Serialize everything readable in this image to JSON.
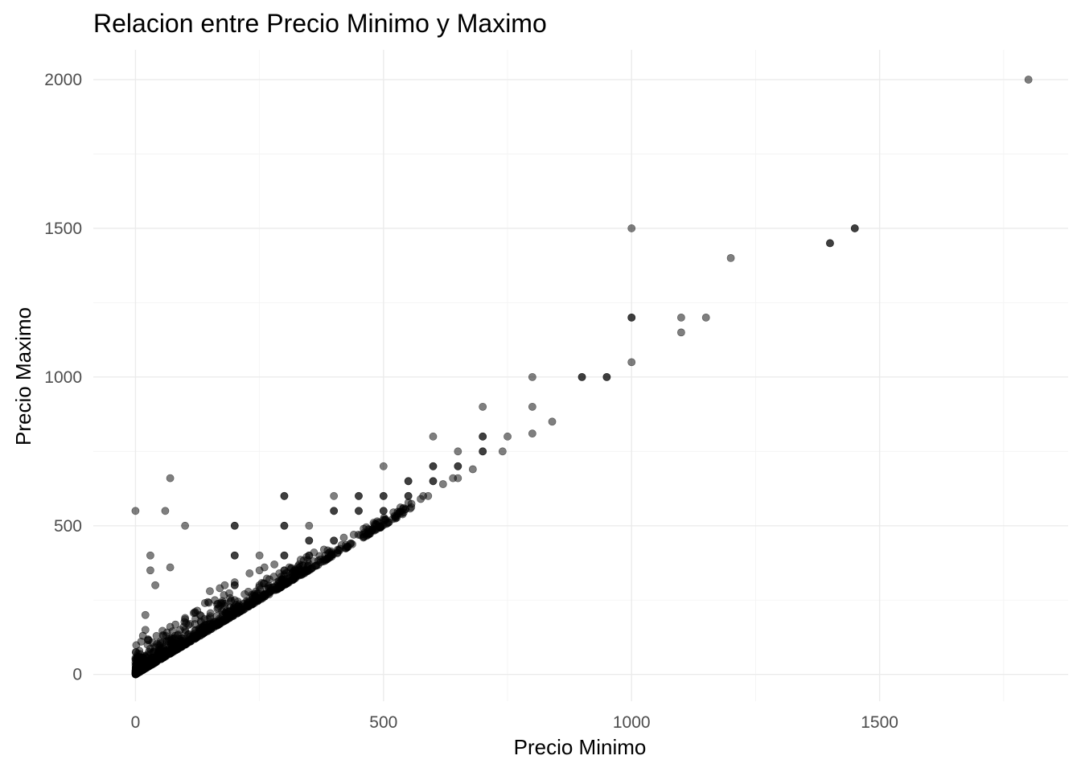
{
  "chart_data": {
    "type": "scatter",
    "title": "Relacion entre Precio Minimo y Maximo",
    "xlabel": "Precio Minimo",
    "ylabel": "Precio Maximo",
    "xlim": [
      -85,
      1880
    ],
    "ylim": [
      -90,
      2100
    ],
    "x_ticks": [
      0,
      500,
      1000,
      1500
    ],
    "y_ticks": [
      0,
      500,
      1000,
      1500,
      2000
    ],
    "x_tick_labels": [
      "0",
      "500",
      "1000",
      "1500"
    ],
    "y_tick_labels": [
      "0",
      "500",
      "1000",
      "1500",
      "2000"
    ],
    "grid": true,
    "point_color": "#000000",
    "point_opacity": 0.5,
    "points": [
      [
        1800,
        2000
      ],
      [
        1000,
        1500
      ],
      [
        1450,
        1500
      ],
      [
        1450,
        1500
      ],
      [
        1400,
        1450
      ],
      [
        1400,
        1450
      ],
      [
        1200,
        1400
      ],
      [
        1000,
        1200
      ],
      [
        1000,
        1200
      ],
      [
        1100,
        1200
      ],
      [
        1150,
        1200
      ],
      [
        1100,
        1150
      ],
      [
        1000,
        1050
      ],
      [
        800,
        1000
      ],
      [
        900,
        1000
      ],
      [
        900,
        1000
      ],
      [
        950,
        1000
      ],
      [
        950,
        1000
      ],
      [
        700,
        900
      ],
      [
        800,
        900
      ],
      [
        840,
        850
      ],
      [
        800,
        810
      ],
      [
        600,
        800
      ],
      [
        700,
        800
      ],
      [
        700,
        800
      ],
      [
        750,
        800
      ],
      [
        650,
        750
      ],
      [
        700,
        750
      ],
      [
        700,
        750
      ],
      [
        740,
        750
      ],
      [
        500,
        700
      ],
      [
        600,
        700
      ],
      [
        600,
        700
      ],
      [
        650,
        700
      ],
      [
        650,
        700
      ],
      [
        680,
        690
      ],
      [
        640,
        660
      ],
      [
        650,
        660
      ],
      [
        600,
        650
      ],
      [
        600,
        650
      ],
      [
        620,
        640
      ],
      [
        550,
        650
      ],
      [
        550,
        650
      ],
      [
        300,
        600
      ],
      [
        300,
        600
      ],
      [
        400,
        600
      ],
      [
        450,
        600
      ],
      [
        450,
        600
      ],
      [
        500,
        600
      ],
      [
        500,
        600
      ],
      [
        550,
        600
      ],
      [
        550,
        600
      ],
      [
        580,
        600
      ],
      [
        590,
        600
      ],
      [
        575,
        590
      ],
      [
        400,
        550
      ],
      [
        400,
        550
      ],
      [
        450,
        550
      ],
      [
        450,
        550
      ],
      [
        500,
        550
      ],
      [
        500,
        550
      ],
      [
        350,
        500
      ],
      [
        300,
        500
      ],
      [
        300,
        500
      ],
      [
        200,
        500
      ],
      [
        200,
        500
      ],
      [
        100,
        500
      ],
      [
        350,
        450
      ],
      [
        350,
        450
      ],
      [
        400,
        450
      ],
      [
        400,
        450
      ],
      [
        200,
        400
      ],
      [
        200,
        400
      ],
      [
        250,
        400
      ],
      [
        300,
        400
      ],
      [
        300,
        400
      ],
      [
        350,
        400
      ],
      [
        350,
        400
      ],
      [
        300,
        350
      ],
      [
        300,
        350
      ],
      [
        250,
        350
      ],
      [
        230,
        340
      ],
      [
        200,
        310
      ],
      [
        200,
        300
      ],
      [
        200,
        300
      ],
      [
        180,
        300
      ],
      [
        170,
        290
      ],
      [
        150,
        280
      ],
      [
        260,
        360
      ],
      [
        280,
        370
      ],
      [
        0,
        550
      ],
      [
        60,
        550
      ],
      [
        70,
        660
      ],
      [
        30,
        400
      ],
      [
        30,
        350
      ],
      [
        40,
        300
      ],
      [
        70,
        360
      ],
      [
        20,
        200
      ],
      [
        20,
        150
      ],
      [
        15,
        130
      ],
      [
        70,
        160
      ],
      [
        100,
        190
      ],
      [
        120,
        210
      ],
      [
        140,
        240
      ],
      [
        160,
        250
      ],
      [
        110,
        170
      ],
      [
        90,
        150
      ],
      [
        0,
        50
      ],
      [
        0,
        40
      ],
      [
        5,
        70
      ],
      [
        0,
        55
      ],
      [
        5,
        30
      ],
      [
        2,
        20
      ],
      [
        0,
        10
      ],
      [
        10,
        25
      ],
      [
        15,
        45
      ],
      [
        20,
        60
      ],
      [
        30,
        75
      ],
      [
        40,
        90
      ],
      [
        50,
        110
      ],
      [
        60,
        80
      ],
      [
        80,
        130
      ],
      [
        100,
        150
      ],
      [
        120,
        170
      ],
      [
        130,
        200
      ],
      [
        150,
        190
      ],
      [
        180,
        230
      ],
      [
        200,
        250
      ],
      [
        220,
        270
      ],
      [
        250,
        300
      ],
      [
        270,
        320
      ],
      [
        290,
        340
      ],
      [
        310,
        360
      ],
      [
        330,
        370
      ],
      [
        345,
        395
      ],
      [
        360,
        410
      ],
      [
        380,
        420
      ],
      [
        420,
        460
      ],
      [
        440,
        470
      ],
      [
        460,
        490
      ],
      [
        480,
        510
      ],
      [
        500,
        520
      ],
      [
        520,
        545
      ],
      [
        540,
        560
      ]
    ],
    "dense_band": [
      {
        "x0": 0,
        "x1": 560,
        "slope": 1.0,
        "offset_max": 30,
        "count": 520
      },
      {
        "x0": 0,
        "x1": 350,
        "slope": 1.0,
        "offset_max": 60,
        "count": 260
      },
      {
        "x0": 0,
        "x1": 200,
        "slope": 1.0,
        "offset_max": 100,
        "count": 160
      }
    ]
  }
}
